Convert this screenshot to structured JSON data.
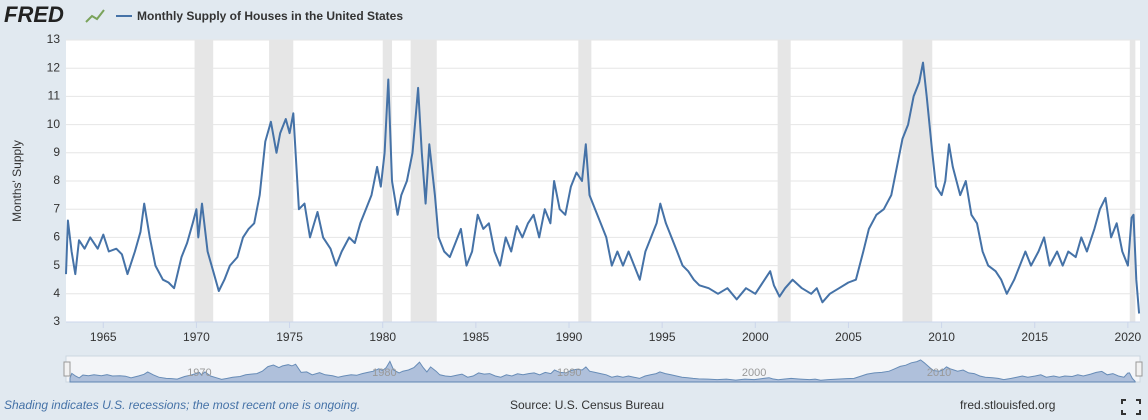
{
  "chart_data": {
    "type": "line",
    "brand": "FRED",
    "title": "Monthly Supply of Houses in the United States",
    "ylabel": "Months' Supply",
    "x": [
      1963.0,
      1963.1,
      1963.3,
      1963.5,
      1963.7,
      1964.0,
      1964.3,
      1964.7,
      1965.0,
      1965.3,
      1965.7,
      1966.0,
      1966.3,
      1966.7,
      1967.0,
      1967.2,
      1967.5,
      1967.8,
      1968.2,
      1968.5,
      1968.8,
      1969.2,
      1969.5,
      1969.8,
      1970.0,
      1970.1,
      1970.3,
      1970.6,
      1970.9,
      1971.2,
      1971.5,
      1971.8,
      1972.2,
      1972.5,
      1972.8,
      1973.1,
      1973.4,
      1973.7,
      1974.0,
      1974.3,
      1974.5,
      1974.8,
      1975.0,
      1975.2,
      1975.5,
      1975.8,
      1976.1,
      1976.5,
      1976.8,
      1977.2,
      1977.5,
      1977.8,
      1978.2,
      1978.5,
      1978.8,
      1979.1,
      1979.4,
      1979.7,
      1979.9,
      1980.1,
      1980.3,
      1980.5,
      1980.8,
      1981.0,
      1981.3,
      1981.6,
      1981.8,
      1981.9,
      1982.1,
      1982.3,
      1982.5,
      1982.8,
      1983.0,
      1983.3,
      1983.6,
      1983.9,
      1984.2,
      1984.5,
      1984.8,
      1985.1,
      1985.4,
      1985.7,
      1986.0,
      1986.3,
      1986.6,
      1986.9,
      1987.2,
      1987.5,
      1987.8,
      1988.1,
      1988.4,
      1988.7,
      1989.0,
      1989.2,
      1989.5,
      1989.8,
      1990.1,
      1990.4,
      1990.7,
      1990.9,
      1991.1,
      1991.4,
      1991.7,
      1992.0,
      1992.3,
      1992.6,
      1992.9,
      1993.2,
      1993.5,
      1993.8,
      1994.1,
      1994.4,
      1994.7,
      1994.9,
      1995.2,
      1995.5,
      1995.8,
      1996.1,
      1996.4,
      1996.7,
      1997.0,
      1997.5,
      1998.0,
      1998.5,
      1999.0,
      1999.5,
      2000.0,
      2000.5,
      2000.8,
      2001.0,
      2001.3,
      2001.6,
      2002.0,
      2002.5,
      2003.0,
      2003.3,
      2003.6,
      2004.0,
      2004.5,
      2005.0,
      2005.4,
      2005.8,
      2006.1,
      2006.5,
      2006.9,
      2007.3,
      2007.6,
      2007.9,
      2008.2,
      2008.5,
      2008.8,
      2009.0,
      2009.2,
      2009.5,
      2009.7,
      2010.0,
      2010.2,
      2010.4,
      2010.6,
      2010.8,
      2011.0,
      2011.3,
      2011.6,
      2011.9,
      2012.2,
      2012.5,
      2012.9,
      2013.2,
      2013.5,
      2013.9,
      2014.2,
      2014.5,
      2014.8,
      2015.2,
      2015.5,
      2015.8,
      2016.2,
      2016.5,
      2016.8,
      2017.2,
      2017.5,
      2017.8,
      2018.2,
      2018.5,
      2018.8,
      2019.1,
      2019.4,
      2019.7,
      2020.0,
      2020.2,
      2020.3,
      2020.45,
      2020.6
    ],
    "series": [
      {
        "name": "Monthly Supply of Houses in the United States",
        "color": "#4572a7",
        "values": [
          4.7,
          6.6,
          5.5,
          4.7,
          5.9,
          5.6,
          6.0,
          5.6,
          6.1,
          5.5,
          5.6,
          5.4,
          4.7,
          5.5,
          6.2,
          7.2,
          6.0,
          5.0,
          4.5,
          4.4,
          4.2,
          5.3,
          5.8,
          6.5,
          7.0,
          6.0,
          7.2,
          5.5,
          4.8,
          4.1,
          4.5,
          5.0,
          5.3,
          6.0,
          6.3,
          6.5,
          7.5,
          9.4,
          10.1,
          9.0,
          9.7,
          10.2,
          9.7,
          10.4,
          7.0,
          7.2,
          6.0,
          6.9,
          6.0,
          5.6,
          5.0,
          5.5,
          6.0,
          5.8,
          6.5,
          7.0,
          7.5,
          8.5,
          7.8,
          9.0,
          11.6,
          8.0,
          6.8,
          7.5,
          8.0,
          9.0,
          10.5,
          11.3,
          9.0,
          7.2,
          9.3,
          7.5,
          6.0,
          5.5,
          5.3,
          5.8,
          6.3,
          5.0,
          5.5,
          6.8,
          6.3,
          6.5,
          5.5,
          5.0,
          6.0,
          5.5,
          6.4,
          6.0,
          6.5,
          6.8,
          6.0,
          7.0,
          6.5,
          8.0,
          7.0,
          6.8,
          7.8,
          8.3,
          8.0,
          9.3,
          7.5,
          7.0,
          6.5,
          6.0,
          5.0,
          5.5,
          5.0,
          5.5,
          5.0,
          4.5,
          5.5,
          6.0,
          6.5,
          7.2,
          6.5,
          6.0,
          5.5,
          5.0,
          4.8,
          4.5,
          4.3,
          4.2,
          4.0,
          4.2,
          3.8,
          4.2,
          4.0,
          4.5,
          4.8,
          4.3,
          3.9,
          4.2,
          4.5,
          4.2,
          4.0,
          4.2,
          3.7,
          4.0,
          4.2,
          4.4,
          4.5,
          5.5,
          6.3,
          6.8,
          7.0,
          7.5,
          8.5,
          9.5,
          10.0,
          11.0,
          11.5,
          12.2,
          11.0,
          9.0,
          7.8,
          7.5,
          8.0,
          9.3,
          8.5,
          8.0,
          7.5,
          8.0,
          6.8,
          6.5,
          5.5,
          5.0,
          4.8,
          4.5,
          4.0,
          4.5,
          5.0,
          5.5,
          5.0,
          5.5,
          6.0,
          5.0,
          5.5,
          5.0,
          5.5,
          5.3,
          6.0,
          5.5,
          6.3,
          7.0,
          7.4,
          6.0,
          6.5,
          5.5,
          5.0,
          6.7,
          6.8,
          4.5,
          3.3
        ]
      }
    ],
    "recessions": [
      [
        1969.9,
        1970.9
      ],
      [
        1973.9,
        1975.2
      ],
      [
        1980.0,
        1980.5
      ],
      [
        1981.5,
        1982.9
      ],
      [
        1990.5,
        1991.2
      ],
      [
        2001.2,
        2001.9
      ],
      [
        2007.9,
        2009.5
      ],
      [
        2020.1,
        2020.4
      ]
    ],
    "xlim": [
      1963,
      2020.65
    ],
    "xticks": [
      1965,
      1970,
      1975,
      1980,
      1985,
      1990,
      1995,
      2000,
      2005,
      2010,
      2015,
      2020
    ],
    "ylim": [
      3,
      13
    ],
    "yticks": [
      3,
      4,
      5,
      6,
      7,
      8,
      9,
      10,
      11,
      12,
      13
    ],
    "grid": true,
    "navigator_ticks": [
      1970,
      1980,
      1990,
      2000,
      2010
    ],
    "footnote": "Shading indicates U.S. recessions; the most recent one is ongoing.",
    "source": "Source: U.S. Census Bureau",
    "site": "fred.stlouisfed.org"
  }
}
